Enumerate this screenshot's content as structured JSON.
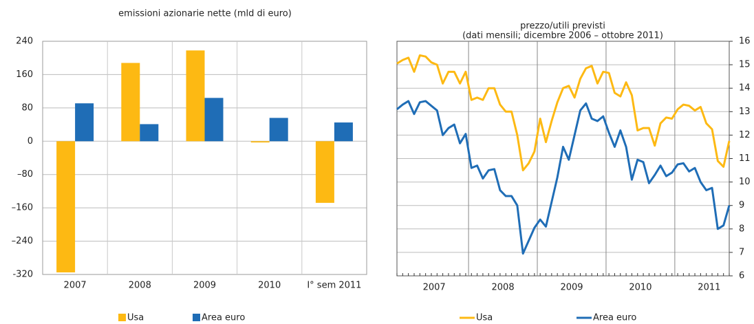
{
  "chart_data": [
    {
      "type": "bar",
      "title": "emissioni azionarie nette (mld di euro)",
      "categories": [
        "2007",
        "2008",
        "2009",
        "2010",
        "I° sem 2011"
      ],
      "series": [
        {
          "name": "Usa",
          "color": "#fdb913",
          "values": [
            -315,
            188,
            218,
            -3,
            -148
          ]
        },
        {
          "name": "Area euro",
          "color": "#1f6db6",
          "values": [
            91,
            41,
            104,
            56,
            45
          ]
        }
      ],
      "ylim": [
        -320,
        240
      ],
      "yticks": [
        -320,
        {
          "value": -240,
          "label": "–240"
        },
        {
          "value": -160,
          "label": "–160"
        },
        {
          "value": -80,
          "label": "–80"
        },
        0,
        80,
        160,
        240
      ],
      "grid": true
    },
    {
      "type": "line",
      "title": "prezzo/utili previsti",
      "subtitle": "(dati mensili; dicembre 2006 – ottobre 2011)",
      "categories": [
        null,
        null,
        null,
        null,
        null,
        null,
        "2007",
        null,
        null,
        null,
        null,
        null,
        null,
        null,
        null,
        null,
        null,
        null,
        "2008",
        null,
        null,
        null,
        null,
        null,
        null,
        null,
        null,
        null,
        null,
        null,
        "2009",
        null,
        null,
        null,
        null,
        null,
        null,
        null,
        null,
        null,
        null,
        null,
        "2010",
        null,
        null,
        null,
        null,
        null,
        null,
        null,
        null,
        null,
        null,
        null,
        "2011",
        null,
        null,
        null,
        null
      ],
      "series": [
        {
          "name": "Usa",
          "color": "#fdb913",
          "values": [
            15.05,
            15.2,
            15.3,
            14.7,
            15.4,
            15.35,
            15.1,
            15.0,
            14.2,
            14.7,
            14.7,
            14.2,
            14.7,
            13.5,
            13.6,
            13.5,
            14.0,
            14.0,
            13.3,
            13.0,
            13.0,
            12.0,
            10.5,
            10.8,
            11.3,
            12.7,
            11.7,
            12.6,
            13.4,
            14.0,
            14.1,
            13.6,
            14.4,
            14.85,
            14.95,
            14.2,
            14.7,
            14.65,
            13.8,
            13.65,
            14.25,
            13.7,
            12.2,
            12.3,
            12.3,
            11.55,
            12.5,
            12.75,
            12.7,
            13.1,
            13.3,
            13.25,
            13.05,
            13.2,
            12.5,
            12.25,
            10.9,
            10.65,
            11.75
          ]
        },
        {
          "name": "Area euro",
          "color": "#1f6db6",
          "values": [
            13.1,
            13.3,
            13.45,
            12.9,
            13.4,
            13.45,
            13.25,
            13.05,
            12.0,
            12.3,
            12.45,
            11.65,
            12.05,
            10.6,
            10.7,
            10.15,
            10.5,
            10.55,
            9.65,
            9.4,
            9.4,
            9.0,
            6.95,
            7.5,
            8.05,
            8.4,
            8.1,
            9.15,
            10.2,
            11.5,
            10.95,
            12.0,
            13.05,
            13.35,
            12.7,
            12.6,
            12.8,
            12.1,
            11.5,
            12.2,
            11.5,
            10.1,
            10.95,
            10.85,
            9.95,
            10.3,
            10.7,
            10.25,
            10.4,
            10.75,
            10.8,
            10.45,
            10.6,
            10.0,
            9.65,
            9.75,
            8.0,
            8.15,
            9.0
          ]
        }
      ],
      "ylim": [
        6,
        16
      ],
      "yticks": [
        6,
        7,
        8,
        9,
        10,
        11,
        12,
        13,
        14,
        15,
        16
      ],
      "grid": true
    }
  ]
}
